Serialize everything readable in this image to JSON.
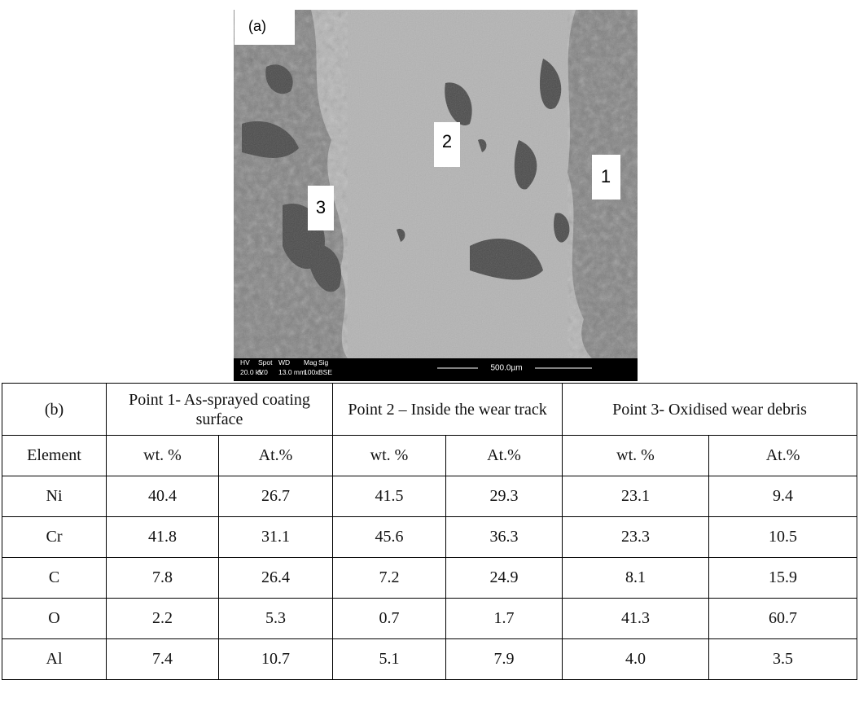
{
  "figure": {
    "panel_label": "(a)",
    "point_labels": [
      "1",
      "2",
      "3"
    ],
    "info_row_1": [
      "HV",
      "Spot",
      "WD",
      "Mag",
      "Sig"
    ],
    "info_row_2": [
      "20.0 kV",
      "5.0",
      "13.0 mm",
      "100x",
      "BSE"
    ],
    "scale_bar": "500.0µm"
  },
  "table": {
    "corner": "(b)",
    "groups": [
      "Point 1- As-sprayed coating surface",
      "Point 2 – Inside the wear track",
      "Point 3- Oxidised wear debris"
    ],
    "subheader": [
      "Element",
      "wt. %",
      "At.%",
      "wt. %",
      "At.%",
      "wt. %",
      "At.%"
    ],
    "rows": [
      [
        "Ni",
        "40.4",
        "26.7",
        "41.5",
        "29.3",
        "23.1",
        "9.4"
      ],
      [
        "Cr",
        "41.8",
        "31.1",
        "45.6",
        "36.3",
        "23.3",
        "10.5"
      ],
      [
        "C",
        "7.8",
        "26.4",
        "7.2",
        "24.9",
        "8.1",
        "15.9"
      ],
      [
        "O",
        "2.2",
        "5.3",
        "0.7",
        "1.7",
        "41.3",
        "60.7"
      ],
      [
        "Al",
        "7.4",
        "10.7",
        "5.1",
        "7.9",
        "4.0",
        "3.5"
      ]
    ]
  }
}
